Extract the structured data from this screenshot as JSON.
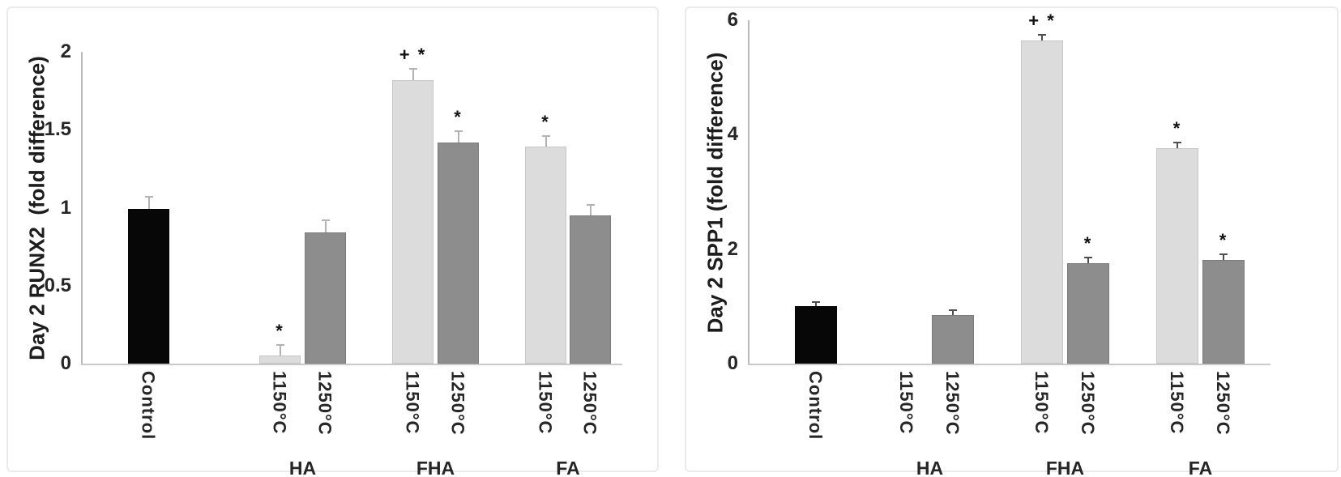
{
  "figure": {
    "description": "Two-panel bar figure: Day 2 RUNX2 and Day 2 SPP1 fold difference for Control and HA/FHA/FA scaffolds sintered at 1150°C and 1250°C",
    "colors": {
      "bar_black": "#070707",
      "bar_light_gray": "#dcdcdc",
      "bar_dark_gray": "#8d8d8d",
      "axis_line": "#b9b9b9",
      "baseline": "#c9c9c9",
      "text": "#262626",
      "panel_border": "#ebebeb"
    }
  },
  "chart_data": [
    {
      "type": "bar",
      "title": "",
      "xlabel": "",
      "ylabel": "Day 2 RUNX2  (fold difference)",
      "ylim": [
        0,
        2
      ],
      "yticks": [
        "0",
        "0.5",
        "1",
        "1.5",
        "2"
      ],
      "grid": false,
      "legend": "none",
      "error_color": "#b3b3b3",
      "groups": [
        "HA",
        "FHA",
        "FA"
      ],
      "bars": [
        {
          "tick": "Control",
          "group": "",
          "value": 0.99,
          "error": 0.08,
          "sig": "",
          "fill": "black"
        },
        {
          "tick": "1150°C",
          "group": "HA",
          "value": 0.05,
          "error": 0.07,
          "sig": "*",
          "fill": "light"
        },
        {
          "tick": "1250°C",
          "group": "HA",
          "value": 0.84,
          "error": 0.08,
          "sig": "",
          "fill": "dark"
        },
        {
          "tick": "1150°C",
          "group": "FHA",
          "value": 1.82,
          "error": 0.07,
          "sig": "+ *",
          "fill": "light"
        },
        {
          "tick": "1250°C",
          "group": "FHA",
          "value": 1.42,
          "error": 0.07,
          "sig": "*",
          "fill": "dark"
        },
        {
          "tick": "1150°C",
          "group": "FA",
          "value": 1.39,
          "error": 0.07,
          "sig": "*",
          "fill": "light"
        },
        {
          "tick": "1250°C",
          "group": "FA",
          "value": 0.95,
          "error": 0.07,
          "sig": "",
          "fill": "dark"
        }
      ]
    },
    {
      "type": "bar",
      "title": "",
      "xlabel": "",
      "ylabel": "Day 2 SPP1 (fold difference)",
      "ylim": [
        0,
        6
      ],
      "yticks": [
        "0",
        "2",
        "4",
        "6"
      ],
      "grid": false,
      "legend": "none",
      "error_color": "#4f4f4f",
      "groups": [
        "HA",
        "FHA",
        "FA"
      ],
      "bars": [
        {
          "tick": "Control",
          "group": "",
          "value": 1.0,
          "error": 0.07,
          "sig": "",
          "fill": "black"
        },
        {
          "tick": "1150°C",
          "group": "HA",
          "value": 0,
          "error": 0,
          "sig": "",
          "fill": "light"
        },
        {
          "tick": "1250°C",
          "group": "HA",
          "value": 0.85,
          "error": 0.08,
          "sig": "",
          "fill": "dark"
        },
        {
          "tick": "1150°C",
          "group": "FHA",
          "value": 5.65,
          "error": 0.1,
          "sig": "+ *",
          "fill": "light"
        },
        {
          "tick": "1250°C",
          "group": "FHA",
          "value": 1.75,
          "error": 0.1,
          "sig": "*",
          "fill": "dark"
        },
        {
          "tick": "1150°C",
          "group": "FA",
          "value": 3.76,
          "error": 0.1,
          "sig": "*",
          "fill": "light"
        },
        {
          "tick": "1250°C",
          "group": "FA",
          "value": 1.81,
          "error": 0.1,
          "sig": "*",
          "fill": "dark"
        }
      ]
    }
  ]
}
